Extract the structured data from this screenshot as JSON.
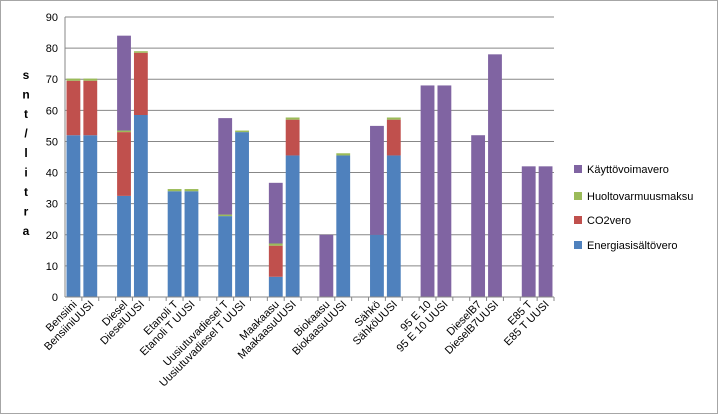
{
  "chart_data": {
    "type": "bar",
    "stacked": true,
    "ylabel": "s n t / l i t r a",
    "ylabel_chars": [
      "s",
      "n",
      "t",
      "/",
      "l",
      "i",
      "t",
      "r",
      "a"
    ],
    "ylim": [
      0,
      90
    ],
    "yticks": [
      0,
      10,
      20,
      30,
      40,
      50,
      60,
      70,
      80,
      90
    ],
    "grid": true,
    "legend_position": "right",
    "categories": [
      "Bensiini",
      "BensiiniUUSI",
      "",
      "Diesel",
      "DieselUUSI",
      "",
      "Etanoli T",
      "Etanoli T UUSI",
      "",
      "Uusiutuvadiesel T",
      "Uusiutuvadiesel T UUSI",
      "",
      "Maakaasu",
      "MaakaasuUUSI",
      "",
      "Biokaasu",
      "BiokaasuUUSI",
      "",
      "Sähkö",
      "SähköUUSI",
      "",
      "95 E 10",
      "95 E 10 UUSI",
      "",
      "DieselB7",
      "DieselB7UUSI",
      "",
      "E85 T",
      "E85 T UUSI"
    ],
    "series": [
      {
        "name": "Energiasisältövero",
        "color": "#4f81bd",
        "values": [
          52,
          52,
          null,
          32.5,
          58.5,
          null,
          34,
          34,
          null,
          26,
          53,
          null,
          6.5,
          45.5,
          null,
          0,
          45.5,
          null,
          20,
          45.5,
          null,
          0,
          0,
          null,
          0,
          0,
          null,
          0,
          0
        ]
      },
      {
        "name": "CO2vero",
        "color": "#c0504d",
        "values": [
          17.5,
          17.5,
          null,
          20.5,
          20,
          null,
          0,
          0,
          null,
          0,
          0,
          null,
          10,
          11.5,
          null,
          0,
          0,
          null,
          0,
          11.5,
          null,
          0,
          0,
          null,
          0,
          0,
          null,
          0,
          0
        ]
      },
      {
        "name": "Huoltovarmuusmaksu",
        "color": "#9bbb59",
        "values": [
          0.7,
          0.7,
          null,
          0.5,
          0.5,
          null,
          0.7,
          0.7,
          null,
          0.5,
          0.5,
          null,
          0.7,
          0.7,
          null,
          0,
          0.7,
          null,
          0,
          0.7,
          null,
          0,
          0,
          null,
          0,
          0,
          null,
          0,
          0
        ]
      },
      {
        "name": "Käyttövoimavero",
        "color": "#8064a2",
        "values": [
          0,
          0,
          null,
          30.5,
          0,
          null,
          0,
          0,
          null,
          31,
          0,
          null,
          19.5,
          0,
          null,
          20,
          0,
          null,
          35,
          0,
          null,
          68,
          68,
          null,
          52,
          78,
          null,
          42,
          42
        ]
      }
    ],
    "legend_order": [
      "Käyttövoimavero",
      "Huoltovarmuusmaksu",
      "CO2vero",
      "Energiasisältövero"
    ]
  }
}
